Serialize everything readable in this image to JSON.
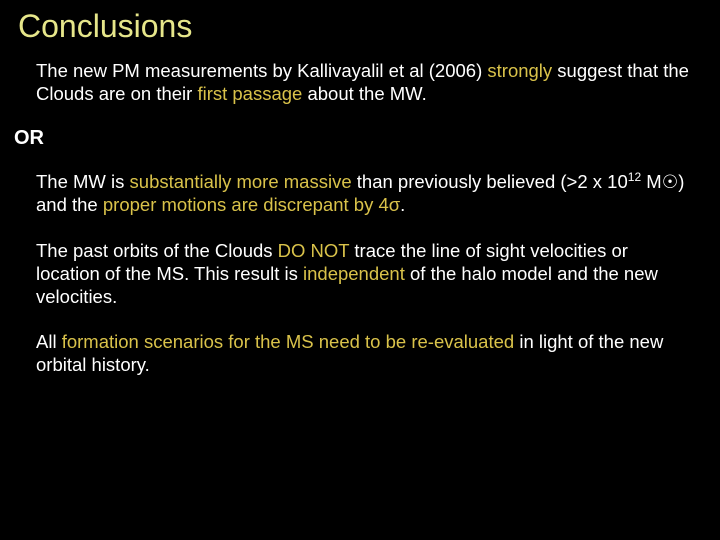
{
  "colors": {
    "background": "#000000",
    "title": "#e6e68a",
    "plain": "#ffffff",
    "accent": "#d9c24a"
  },
  "typography": {
    "title_fontsize": 32,
    "body_fontsize": 18.5,
    "or_fontsize": 20,
    "font_family": "Verdana"
  },
  "title": "Conclusions",
  "or_label": "OR",
  "p1": {
    "t1": "The new PM measurements by Kallivayalil et al (2006) ",
    "t2": "strongly",
    "t3": " suggest that the Clouds are on their ",
    "t4": "first passage",
    "t5": " about the MW."
  },
  "p2": {
    "t1": "The MW is ",
    "t2": "substantially more massive",
    "t3": " than previously believed (>2 x 10",
    "t4": "12",
    "t5": " M",
    "t6": "☉",
    "t7": ") and the ",
    "t8": "proper motions are discrepant by 4σ",
    "t9": "."
  },
  "p3": {
    "t1": "The past orbits of the Clouds ",
    "t2": "DO NOT",
    "t3": " trace the line of sight velocities or location of the MS. This result is ",
    "t4": "independent",
    "t5": " of the halo model and the new velocities."
  },
  "p4": {
    "t1": "All ",
    "t2": "formation scenarios for the MS need to be re-evaluated",
    "t3": " in light of the new orbital history."
  }
}
